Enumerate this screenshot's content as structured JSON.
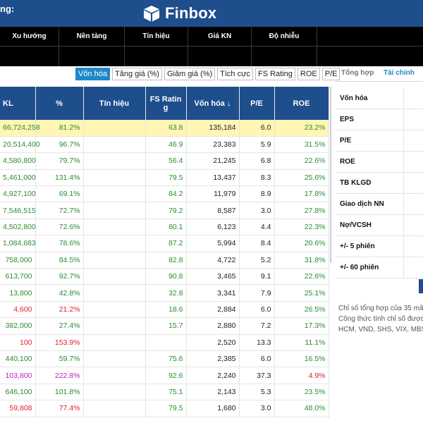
{
  "header": {
    "left_title": "ng:",
    "brand": "Finbox"
  },
  "filters": [
    "Xu hướng",
    "Nền tảng",
    "Tín hiệu",
    "Giá KN",
    "Độ nhiễu"
  ],
  "tabs": [
    {
      "label": "Vốn hóa",
      "active": true
    },
    {
      "label": "Tăng giá (%)",
      "active": false
    },
    {
      "label": "Giảm giá (%)",
      "active": false
    },
    {
      "label": "Tích cực",
      "active": false
    },
    {
      "label": "FS Rating",
      "active": false
    },
    {
      "label": "ROE",
      "active": false
    },
    {
      "label": "P/E",
      "active": false
    }
  ],
  "right_tabs": [
    {
      "label": "Tổng hợp",
      "active": true
    },
    {
      "label": "Tài chính",
      "active": false
    }
  ],
  "table": {
    "columns": [
      "KL",
      "%",
      "Tín hiệu",
      "FS Ratin g",
      "Vốn hóa",
      "P/E",
      "ROE"
    ],
    "sort_arrow": "↓",
    "rows": [
      {
        "kl": "66,724,258",
        "pct": "81.2%",
        "pc": "g",
        "sig": "",
        "fs": "63.8",
        "von": "135,184",
        "pe": "6.0",
        "roe": "23.2%",
        "highlight": true
      },
      {
        "kl": "20,514,400",
        "pct": "96.7%",
        "pc": "g",
        "sig": "",
        "fs": "46.9",
        "von": "23,383",
        "pe": "5.9",
        "roe": "31.5%"
      },
      {
        "kl": "4,580,800",
        "pct": "79.7%",
        "pc": "g",
        "sig": "",
        "fs": "56.4",
        "von": "21,245",
        "pe": "6.8",
        "roe": "22.6%"
      },
      {
        "kl": "5,461,000",
        "pct": "131.4%",
        "pc": "g",
        "sig": "",
        "fs": "79.5",
        "von": "13,437",
        "pe": "8.3",
        "roe": "25.6%"
      },
      {
        "kl": "4,927,100",
        "pct": "69.1%",
        "pc": "g",
        "sig": "",
        "fs": "84.2",
        "von": "11,979",
        "pe": "8.9",
        "roe": "17.8%"
      },
      {
        "kl": "7,546,515",
        "pct": "72.7%",
        "pc": "g",
        "sig": "",
        "fs": "79.2",
        "von": "8,587",
        "pe": "3.0",
        "roe": "27.8%"
      },
      {
        "kl": "4,502,800",
        "pct": "72.6%",
        "pc": "g",
        "sig": "",
        "fs": "80.1",
        "von": "6,123",
        "pe": "4.4",
        "roe": "22.3%"
      },
      {
        "kl": "1,084,683",
        "pct": "78.6%",
        "pc": "g",
        "sig": "",
        "fs": "87.2",
        "von": "5,994",
        "pe": "8.4",
        "roe": "20.6%"
      },
      {
        "kl": "758,000",
        "pct": "84.5%",
        "pc": "g",
        "sig": "",
        "fs": "82.8",
        "von": "4,722",
        "pe": "5.2",
        "roe": "31.8%"
      },
      {
        "kl": "613,700",
        "pct": "92.7%",
        "pc": "g",
        "sig": "",
        "fs": "90.8",
        "von": "3,465",
        "pe": "9.1",
        "roe": "22.6%"
      },
      {
        "kl": "13,800",
        "pct": "42.8%",
        "pc": "g",
        "sig": "",
        "fs": "32.8",
        "von": "3,341",
        "pe": "7.9",
        "roe": "25.1%"
      },
      {
        "kl": "4,600",
        "pct": "21.2%",
        "pc": "r",
        "sig": "",
        "fs": "18.6",
        "von": "2,884",
        "pe": "6.0",
        "roe": "26.5%"
      },
      {
        "kl": "382,000",
        "pct": "27.4%",
        "pc": "g",
        "sig": "",
        "fs": "15.7",
        "von": "2,880",
        "pe": "7.2",
        "roe": "17.3%"
      },
      {
        "kl": "100",
        "pct": "153.9%",
        "pc": "r",
        "sig": "",
        "fs": "",
        "von": "2,520",
        "pe": "13.3",
        "roe": "11.1%"
      },
      {
        "kl": "440,100",
        "pct": "59.7%",
        "pc": "g",
        "sig": "",
        "fs": "75.6",
        "von": "2,385",
        "pe": "6.0",
        "roe": "16.5%"
      },
      {
        "kl": "103,800",
        "pct": "222.8%",
        "pc": "p",
        "sig": "",
        "fs": "92.6",
        "von": "2,240",
        "pe": "37.3",
        "roe": "4.9%",
        "roe_red": true
      },
      {
        "kl": "646,100",
        "pct": "101.8%",
        "pc": "g",
        "sig": "",
        "fs": "75.1",
        "von": "2,143",
        "pe": "5.3",
        "roe": "23.5%"
      },
      {
        "kl": "59,808",
        "pct": "77.4%",
        "pc": "r",
        "sig": "",
        "fs": "79.5",
        "von": "1,680",
        "pe": "3.0",
        "roe": "48.0%"
      }
    ]
  },
  "right_panel": {
    "rows": [
      "Vốn hóa",
      "EPS",
      "P/E",
      "ROE",
      "TB KLGD",
      "Giao dịch NN",
      "Nợ/VCSH",
      "+/- 5 phiên",
      "+/- 60 phiên"
    ],
    "note": [
      "Chỉ số tổng hợp của 35 mã",
      "Công thức tính chỉ số được",
      "HCM, VND, SHS, VIX, MBS."
    ]
  },
  "colors": {
    "header_blue": "#1f4e8c",
    "accent": "#1e88c9",
    "up": "#2e8b2e",
    "down": "#e0202a",
    "ceiling": "#c020c0"
  }
}
